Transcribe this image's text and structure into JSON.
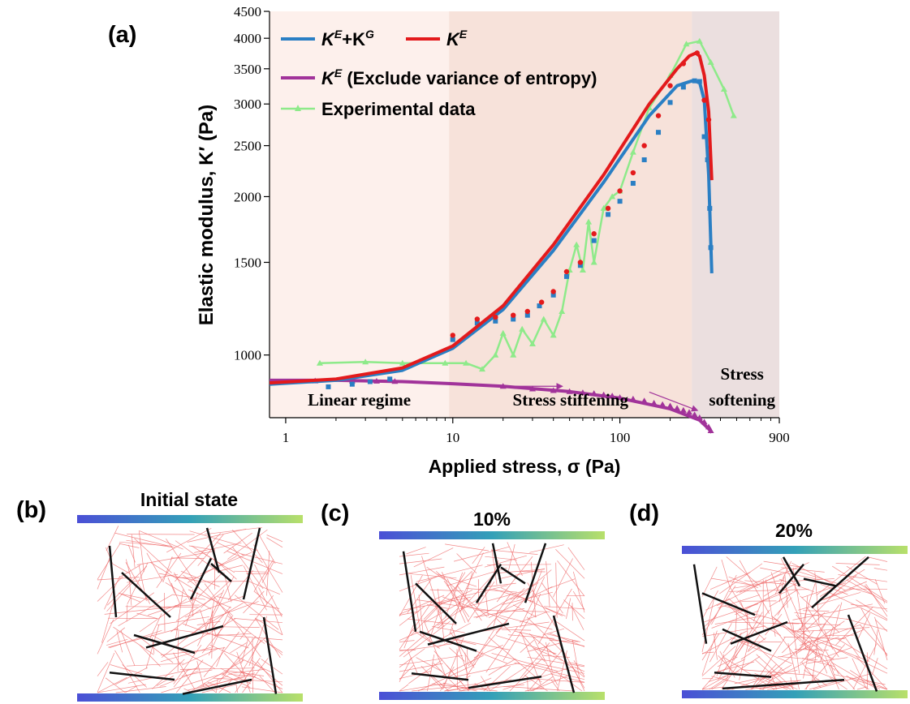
{
  "panel_labels": {
    "a": "(a)",
    "b": "(b)",
    "c": "(c)",
    "d": "(d)"
  },
  "chart_data": {
    "type": "line",
    "xlabel": "Applied stress, σ (Pa)",
    "ylabel": "Elastic modulus, K′ (Pa)",
    "x_scale": "log",
    "y_scale": "log",
    "xlim": [
      0.8,
      900
    ],
    "ylim": [
      760,
      4500
    ],
    "x_ticks": [
      1,
      10,
      100,
      900
    ],
    "x_tick_labels": [
      "1",
      "10",
      "100",
      "900"
    ],
    "y_ticks": [
      1000,
      1500,
      2000,
      2500,
      3000,
      3500,
      4000,
      4500
    ],
    "y_tick_labels": [
      "1000",
      "1500",
      "2000",
      "2500",
      "3000",
      "3500",
      "4000",
      "4500"
    ],
    "regions": [
      {
        "label": "Linear regime",
        "from": 0.8,
        "to": 9.5,
        "color": "#fdf0ec"
      },
      {
        "label": "Stress stiffening",
        "from": 9.5,
        "to": 270,
        "color": "#f7e2da"
      },
      {
        "label": "Stress softening",
        "from": 270,
        "to": 900,
        "color": "#ebdfdf",
        "lines": [
          "Stress",
          "softening"
        ]
      }
    ],
    "series": [
      {
        "name": "K^E+K^G",
        "legend_main": "K",
        "legend_sup1": "E",
        "legend_mid": "+K",
        "legend_sup2": "G",
        "color": "#2a7fc4",
        "x": [
          0.8,
          2,
          5,
          10,
          20,
          40,
          80,
          150,
          220,
          270,
          300,
          320,
          340,
          355
        ],
        "y": [
          880,
          895,
          935,
          1030,
          1220,
          1580,
          2130,
          2850,
          3250,
          3320,
          3300,
          3050,
          2200,
          1430
        ],
        "markers_x": [
          1.8,
          2.5,
          3.2,
          4.2,
          10,
          14,
          18,
          23,
          28,
          33,
          40,
          48,
          58,
          70,
          85,
          100,
          120,
          140,
          170,
          200,
          240,
          280,
          300,
          320,
          335,
          345,
          350
        ],
        "markers_y": [
          870,
          880,
          890,
          900,
          1070,
          1150,
          1160,
          1170,
          1190,
          1240,
          1300,
          1410,
          1480,
          1650,
          1850,
          1960,
          2120,
          2350,
          2650,
          3020,
          3230,
          3320,
          3310,
          2600,
          2350,
          1900,
          1600
        ]
      },
      {
        "name": "K^E",
        "legend_main": "K",
        "legend_sup1": "E",
        "color": "#e31a1c",
        "x": [
          0.8,
          2,
          5,
          10,
          20,
          40,
          80,
          150,
          220,
          260,
          285,
          300,
          320,
          340,
          355
        ],
        "y": [
          885,
          900,
          945,
          1040,
          1240,
          1620,
          2200,
          3000,
          3500,
          3700,
          3750,
          3700,
          3400,
          2900,
          2150
        ],
        "markers_x": [
          10,
          14,
          18,
          23,
          28,
          34,
          40,
          48,
          58,
          70,
          85,
          100,
          120,
          140,
          170,
          200,
          240,
          290,
          320,
          340
        ],
        "markers_y": [
          1090,
          1170,
          1180,
          1190,
          1210,
          1260,
          1320,
          1440,
          1500,
          1700,
          1900,
          2050,
          2220,
          2500,
          2850,
          3250,
          3580,
          3750,
          3050,
          2800
        ]
      },
      {
        "name": "K^E (Exclude variance of entropy)",
        "legend_main": "K",
        "legend_sup1": "E",
        "legend_rest": " (Exclude variance of entropy)",
        "color": "#a1339a",
        "x": [
          0.8,
          2,
          5,
          10,
          20,
          50,
          100,
          200,
          300,
          340,
          355
        ],
        "y": [
          895,
          895,
          890,
          882,
          872,
          852,
          828,
          790,
          752,
          724,
          712
        ],
        "markers_x": [
          1.5,
          2.5,
          3.5,
          4.5,
          20,
          30,
          40,
          50,
          60,
          70,
          80,
          90,
          100,
          120,
          140,
          160,
          180,
          200,
          220,
          240,
          260,
          280,
          300,
          320,
          340,
          350
        ],
        "markers_y": [
          893,
          893,
          892,
          891,
          872,
          862,
          856,
          852,
          848,
          845,
          840,
          836,
          830,
          825,
          818,
          810,
          805,
          800,
          792,
          785,
          778,
          770,
          760,
          746,
          730,
          718
        ]
      },
      {
        "name": "Experimental data",
        "legend_main": "Experimental data",
        "color": "#8eea8a",
        "x": [
          1.6,
          3,
          5,
          9,
          12,
          15,
          18,
          20,
          23,
          26,
          30,
          35,
          40,
          45,
          50,
          55,
          60,
          65,
          70,
          80,
          90,
          100,
          120,
          150,
          200,
          250,
          300,
          350,
          420,
          480
        ],
        "y": [
          965,
          970,
          965,
          965,
          965,
          940,
          1000,
          1100,
          1000,
          1120,
          1050,
          1170,
          1090,
          1210,
          1450,
          1620,
          1450,
          1790,
          1500,
          1900,
          2000,
          2050,
          2430,
          2950,
          3400,
          3900,
          3950,
          3600,
          3200,
          2850
        ],
        "markers_x": [
          1.6,
          3,
          5,
          9,
          12,
          15,
          18,
          20,
          23,
          26,
          30,
          35,
          40,
          45,
          50,
          55,
          60,
          65,
          70,
          80,
          90,
          100,
          120,
          150,
          200,
          250,
          300,
          350,
          420,
          480
        ],
        "markers_y": [
          965,
          970,
          965,
          965,
          965,
          940,
          1000,
          1100,
          1000,
          1120,
          1050,
          1170,
          1090,
          1210,
          1450,
          1620,
          1450,
          1790,
          1500,
          1900,
          2000,
          2050,
          2430,
          2950,
          3400,
          3900,
          3950,
          3600,
          3200,
          2850
        ]
      }
    ],
    "arrows": [
      {
        "from": [
          20,
          872
        ],
        "to": [
          45,
          872
        ]
      },
      {
        "from": [
          150,
          850
        ],
        "to": [
          290,
          785
        ]
      }
    ]
  },
  "simulations": [
    {
      "id": "b",
      "title": "Initial state"
    },
    {
      "id": "c",
      "title": "10%"
    },
    {
      "id": "d",
      "title": "20%"
    }
  ],
  "colors": {
    "plate_start": "#4b4fd6",
    "plate_mid": "#33a0b8",
    "plate_end": "#b8e06a",
    "fiber": "#ef6a6a",
    "bundle": "#111111"
  }
}
